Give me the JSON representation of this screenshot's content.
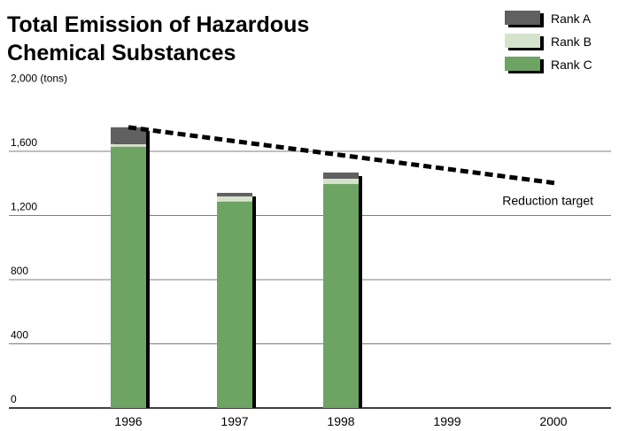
{
  "chart_data": {
    "type": "stacked_bar",
    "title": [
      "Total Emission of Hazardous",
      "Chemical Substances"
    ],
    "categories": [
      "1996",
      "1997",
      "1998",
      "1999",
      "2000"
    ],
    "series": [
      {
        "name": "Rank C",
        "color": "#6da464",
        "values": [
          1628,
          1286,
          1396,
          null,
          null
        ]
      },
      {
        "name": "Rank B",
        "color": "#d5e3cc",
        "values": [
          17,
          33,
          33,
          null,
          null
        ]
      },
      {
        "name": "Rank A",
        "color": "#606060",
        "values": [
          105,
          22,
          39,
          null,
          null
        ]
      }
    ],
    "target": {
      "label": "Reduction target",
      "from": 1750,
      "to": 1400
    },
    "ylim": [
      0,
      2000
    ],
    "yticks": [
      0,
      400,
      800,
      {
        "value": 1200,
        "label": "1,200"
      },
      {
        "value": 1600,
        "label": "1,600"
      },
      {
        "value": 2000,
        "label": "2,000 (tons)"
      }
    ],
    "grid": true,
    "legend": "top-right"
  }
}
